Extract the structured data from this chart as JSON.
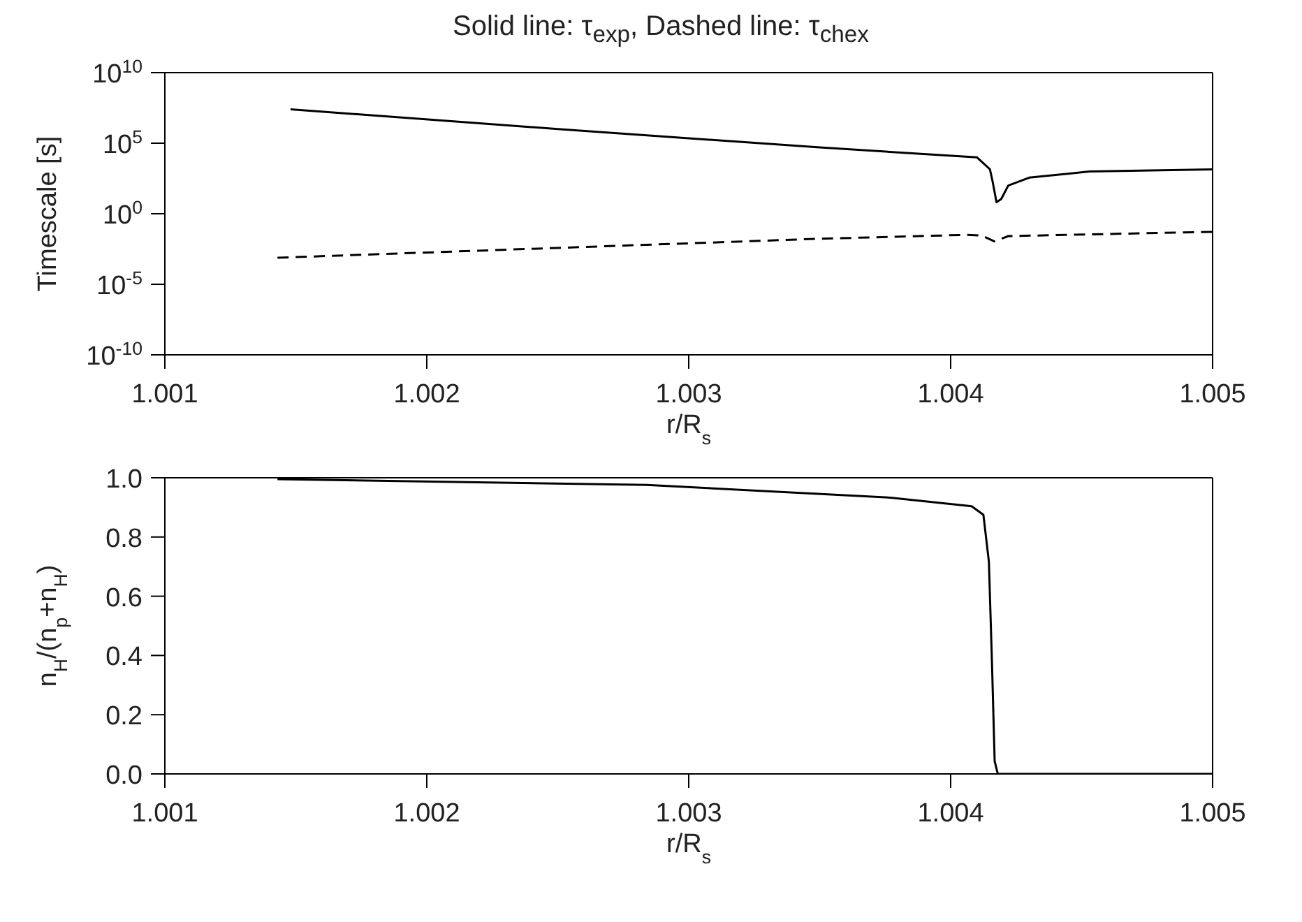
{
  "chart_data": [
    {
      "type": "line",
      "title": "Solid line: τ$_{exp}$, Dashed line: τ$_{chex}$",
      "xlabel": "r/R$_{s}$",
      "ylabel": "Timescale [s]",
      "log": "y",
      "xlim": [
        1.001,
        1.005
      ],
      "xticks": [
        {
          "value": 1.001,
          "label": "1.001"
        },
        {
          "value": 1.002,
          "label": "1.002"
        },
        {
          "value": 1.003,
          "label": "1.003"
        },
        {
          "value": 1.004,
          "label": "1.004"
        },
        {
          "value": 1.005,
          "label": "1.005"
        }
      ],
      "ylim": [
        1e-10,
        10000000000.0
      ],
      "yticks": [
        {
          "value": 1e-10,
          "label": "10$^{-10}$"
        },
        {
          "value": 1e-05,
          "label": "10$^{-5}$"
        },
        {
          "value": 1,
          "label": "10$^{0}$"
        },
        {
          "value": 100000.0,
          "label": "10$^{5}$"
        },
        {
          "value": 10000000000.0,
          "label": "10$^{10}$"
        }
      ],
      "series": [
        {
          "color": "#000000",
          "line_style": "solid",
          "x": [
            1.00148,
            1.0025,
            1.0035,
            1.0041,
            1.00415,
            1.00416,
            1.004175,
            1.004193,
            1.00422,
            1.0043,
            1.00453,
            1.005
          ],
          "values": [
            25000000,
            1000000,
            50000,
            10000,
            1400,
            200,
            6.5,
            11,
            100,
            360,
            980,
            1400
          ]
        },
        {
          "color": "#000000",
          "line_style": "dashed",
          "x": [
            1.00143,
            1.0025,
            1.00349,
            1.00406,
            1.00412,
            1.004167,
            1.00422,
            1.00495,
            1.005
          ],
          "values": [
            0.00076,
            0.0038,
            0.0166,
            0.032,
            0.028,
            0.011,
            0.026,
            0.05,
            0.051
          ]
        }
      ]
    },
    {
      "type": "line",
      "xlabel": "r/R$_{s}$",
      "ylabel": "n$_{H}$/(n$_{p}$+n$_{H}$)",
      "xlim": [
        1.001,
        1.005
      ],
      "xticks": [
        {
          "value": 1.001,
          "label": "1.001"
        },
        {
          "value": 1.002,
          "label": "1.002"
        },
        {
          "value": 1.003,
          "label": "1.003"
        },
        {
          "value": 1.004,
          "label": "1.004"
        },
        {
          "value": 1.005,
          "label": "1.005"
        }
      ],
      "ylim": [
        0,
        1
      ],
      "yticks": [
        {
          "value": 0,
          "label": "0.0"
        },
        {
          "value": 0.2,
          "label": "0.2"
        },
        {
          "value": 0.4,
          "label": "0.4"
        },
        {
          "value": 0.6,
          "label": "0.6"
        },
        {
          "value": 0.8,
          "label": "0.8"
        },
        {
          "value": 1,
          "label": "1.0"
        }
      ],
      "series": [
        {
          "color": "#000000",
          "line_style": "solid",
          "x": [
            1.00143,
            1.00284,
            1.00377,
            1.00408,
            1.004125,
            1.004146,
            1.004158,
            1.004168,
            1.00418,
            1.005
          ],
          "values": [
            0.995,
            0.976,
            0.933,
            0.904,
            0.875,
            0.716,
            0.368,
            0.043,
            0,
            0
          ]
        }
      ]
    }
  ]
}
